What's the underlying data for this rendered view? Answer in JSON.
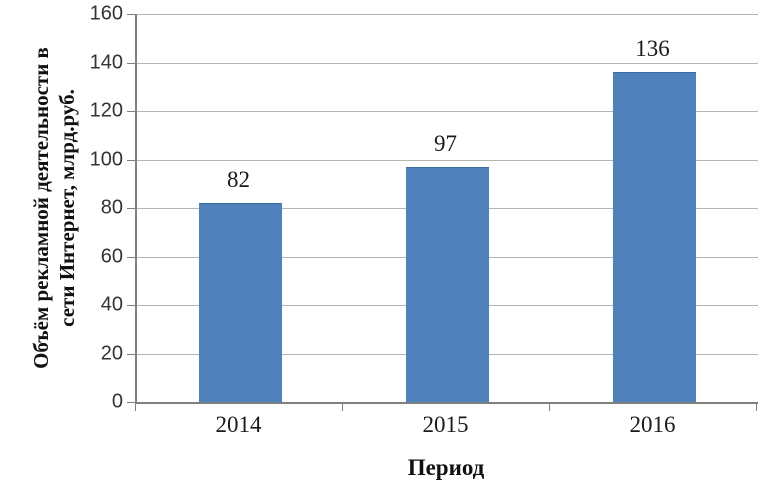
{
  "chart_data": {
    "type": "bar",
    "categories": [
      "2014",
      "2015",
      "2016"
    ],
    "values": [
      82,
      97,
      136
    ],
    "data_labels": [
      "82",
      "97",
      "136"
    ],
    "title": "",
    "xlabel": "Период",
    "ylabel": "Объём рекламной деятельности в сети Интернет, млрд.руб.",
    "ylabel_line1": "Объём рекламной деятельности в",
    "ylabel_line2": "сети Интернет, млрд.руб.",
    "ylim": [
      0,
      160
    ],
    "ytick_step": 20,
    "yticks": [
      0,
      20,
      40,
      60,
      80,
      100,
      120,
      140,
      160
    ],
    "grid": true,
    "legend": false,
    "colors": {
      "bar_fill": "#4f81bd",
      "bar_border": "#3d6ca5",
      "gridline": "#b5b5b5",
      "axis": "#7f7f7f",
      "text": "#1a1a1a"
    }
  }
}
